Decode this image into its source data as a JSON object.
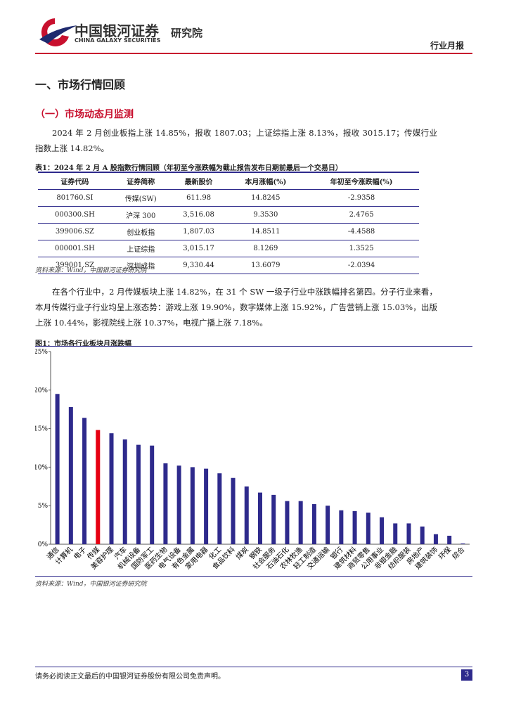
{
  "header": {
    "brand": "中国银河证券",
    "brand_en": "CHINA GALAXY SECURITIES",
    "institute": "研究院",
    "report_type": "行业月报"
  },
  "section_title": "一、市场行情回顾",
  "subsection_title": "（一）市场动态月监测",
  "paragraph1": "2024 年 2 月创业板指上涨 14.85%，报收 1807.03；上证综指上涨 8.13%，报收 3015.17；传媒行业指数上涨 14.82%。",
  "table": {
    "caption": "表1：2024 年 2 月 A 股指数行情回顾（年初至今涨跌幅为截止报告发布日期前最后一个交易日）",
    "headers": [
      "证券代码",
      "证券简称",
      "最新股价",
      "本月涨幅(%)",
      "年初至今涨跌幅(%)"
    ],
    "rows": [
      [
        "801760.SI",
        "传媒(SW)",
        "611.98",
        "14.8245",
        "-2.9358"
      ],
      [
        "000300.SH",
        "沪深 300",
        "3,516.08",
        "9.3530",
        "2.4765"
      ],
      [
        "399006.SZ",
        "创业板指",
        "1,807.03",
        "14.8511",
        "-4.4588"
      ],
      [
        "000001.SH",
        "上证综指",
        "3,015.17",
        "8.1269",
        "1.3525"
      ],
      [
        "399001.SZ",
        "深圳成指",
        "9,330.44",
        "13.6079",
        "-2.0394"
      ]
    ],
    "source": "资料来源：Wind，中国银河证券研究院"
  },
  "paragraph2": "在各个行业中，2 月传媒板块上涨 14.82%，在 31 个 SW 一级子行业中涨跌幅排名第四。分子行业来看，本月传媒行业子行业均呈上涨态势：游戏上涨 19.90%，数字媒体上涨 15.92%，广告营销上涨 15.03%，出版上涨 10.44%，影视院线上涨 10.37%，电视广播上涨 7.18%。",
  "figure_caption": "图1：市场各行业板块月涨跌幅",
  "chart_data": {
    "type": "bar",
    "categories": [
      "通信",
      "计算机",
      "电子",
      "传媒",
      "美容护理",
      "汽车",
      "机械设备",
      "国防军工",
      "医药生物",
      "电气设备",
      "有色金属",
      "家用电器",
      "化工",
      "食品饮料",
      "煤炭",
      "钢铁",
      "社会服务",
      "石油石化",
      "农林牧渔",
      "轻工制造",
      "交通运输",
      "银行",
      "建筑材料",
      "商贸零售",
      "公用事业",
      "非银金融",
      "纺织服装",
      "房地产",
      "建筑装饰",
      "环保",
      "综合"
    ],
    "values": [
      19.5,
      17.8,
      16.4,
      14.82,
      14.4,
      13.6,
      12.9,
      12.8,
      10.5,
      10.2,
      10.0,
      9.8,
      9.2,
      8.6,
      7.5,
      6.7,
      6.4,
      5.6,
      5.6,
      5.2,
      5.0,
      4.4,
      4.3,
      4.1,
      3.5,
      2.7,
      2.7,
      2.3,
      1.3,
      1.1,
      0.1
    ],
    "colors": [
      "#2e2a8c",
      "#2e2a8c",
      "#2e2a8c",
      "#e60012",
      "#2e2a8c",
      "#2e2a8c",
      "#2e2a8c",
      "#2e2a8c",
      "#2e2a8c",
      "#2e2a8c",
      "#2e2a8c",
      "#2e2a8c",
      "#2e2a8c",
      "#2e2a8c",
      "#2e2a8c",
      "#2e2a8c",
      "#2e2a8c",
      "#2e2a8c",
      "#2e2a8c",
      "#2e2a8c",
      "#2e2a8c",
      "#2e2a8c",
      "#2e2a8c",
      "#2e2a8c",
      "#2e2a8c",
      "#2e2a8c",
      "#2e2a8c",
      "#2e2a8c",
      "#2e2a8c",
      "#2e2a8c",
      "#2e2a8c"
    ],
    "ylim": [
      0,
      25
    ],
    "yticks": [
      {
        "value": 0,
        "label": "0%"
      },
      {
        "value": 5,
        "label": "5%"
      },
      {
        "value": 10,
        "label": "10%"
      },
      {
        "value": 15,
        "label": "15%"
      },
      {
        "value": 20,
        "label": "20%"
      },
      {
        "value": 25,
        "label": "25%"
      }
    ],
    "grid": false
  },
  "figure_source": "资料来源：Wind，中国银河证券研究院",
  "footer": {
    "disclaimer": "请务必阅读正文最后的中国银河证券股份有限公司免责声明。",
    "page": "3"
  }
}
